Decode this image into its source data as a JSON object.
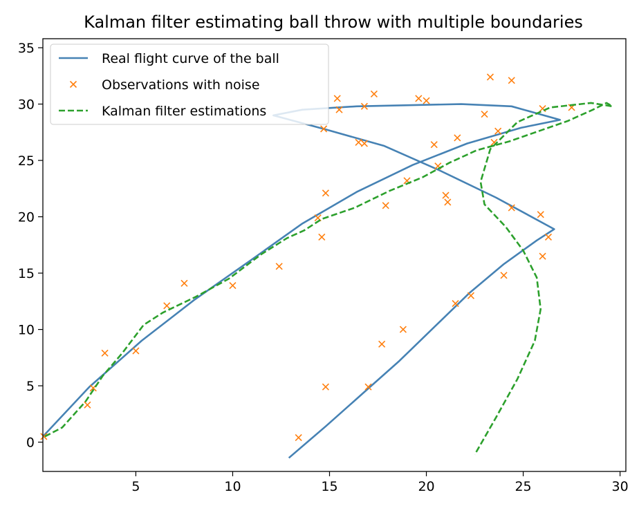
{
  "chart_data": {
    "type": "line",
    "title": "Kalman filter estimating ball throw with multiple boundaries",
    "xlabel": "",
    "ylabel": "",
    "xlim": [
      0.2,
      30.3
    ],
    "ylim": [
      -2.6,
      35.8
    ],
    "xticks": [
      5,
      10,
      15,
      20,
      25,
      30
    ],
    "yticks": [
      0,
      5,
      10,
      15,
      20,
      25,
      30,
      35
    ],
    "grid": false,
    "legend_position": "upper left",
    "series": [
      {
        "name": "Real flight curve of the ball",
        "style": "line",
        "color": "#4682b4",
        "x": [
          0.2,
          2.6,
          5.3,
          8.0,
          10.9,
          13.6,
          16.4,
          19.3,
          22.1,
          24.9,
          26.9,
          24.4,
          21.8,
          19.1,
          16.4,
          13.6,
          12.1,
          14.9,
          17.8,
          20.7,
          23.6,
          26.6,
          25.7,
          24.0,
          22.2,
          20.4,
          18.6,
          16.7,
          14.8,
          12.9
        ],
        "y": [
          0.5,
          4.9,
          9.0,
          12.6,
          16.1,
          19.4,
          22.2,
          24.6,
          26.5,
          27.9,
          28.6,
          29.8,
          30.0,
          29.9,
          29.8,
          29.5,
          29.0,
          27.7,
          26.3,
          24.1,
          21.7,
          18.9,
          17.9,
          15.8,
          13.2,
          10.2,
          7.2,
          4.3,
          1.4,
          -1.4
        ]
      },
      {
        "name": "Observations with noise",
        "style": "marker",
        "color": "#ff7f0e",
        "x": [
          0.25,
          2.5,
          2.8,
          3.4,
          5.0,
          6.6,
          7.5,
          10.0,
          12.4,
          14.4,
          14.6,
          14.7,
          14.8,
          15.4,
          15.5,
          16.5,
          16.8,
          16.8,
          17.3,
          17.9,
          19.0,
          19.6,
          20.0,
          20.4,
          20.6,
          21.0,
          21.1,
          21.6,
          23.0,
          23.3,
          23.5,
          23.7,
          24.4,
          24.4,
          25.9,
          26.0,
          26.3,
          27.5,
          24.0,
          22.3,
          21.5,
          18.8,
          17.7,
          17.0,
          14.8,
          13.4,
          26.0
        ],
        "y": [
          0.5,
          3.3,
          4.8,
          7.9,
          8.1,
          12.1,
          14.1,
          13.9,
          15.6,
          19.9,
          18.2,
          27.8,
          22.1,
          30.5,
          29.5,
          26.6,
          29.8,
          26.5,
          30.9,
          21.0,
          23.2,
          30.5,
          30.3,
          26.4,
          24.5,
          21.9,
          21.3,
          27.0,
          29.1,
          32.4,
          26.6,
          27.6,
          32.1,
          20.8,
          20.2,
          29.6,
          18.2,
          29.7,
          14.8,
          13.0,
          12.3,
          10.0,
          8.7,
          4.9,
          4.9,
          0.4,
          16.5
        ]
      },
      {
        "name": "Kalman filter estimations",
        "style": "dashed",
        "color": "#2ca02c",
        "x": [
          0.3,
          1.2,
          2.4,
          3.3,
          4.3,
          5.4,
          6.4,
          8.1,
          9.8,
          11.5,
          12.8,
          13.7,
          14.6,
          16.3,
          18.1,
          19.8,
          21.2,
          22.6,
          24.3,
          25.8,
          27.3,
          28.6,
          29.3,
          29.6,
          28.5,
          26.4,
          24.7,
          23.3,
          22.8,
          23.0,
          24.1,
          25.0,
          25.7,
          25.9,
          25.6,
          24.7,
          23.6,
          22.5
        ],
        "y": [
          0.5,
          1.3,
          3.6,
          5.9,
          7.9,
          10.4,
          11.5,
          12.9,
          14.5,
          16.7,
          18.1,
          18.8,
          19.8,
          20.8,
          22.3,
          23.5,
          24.8,
          25.9,
          26.7,
          27.6,
          28.5,
          29.5,
          30.1,
          29.8,
          30.1,
          29.7,
          28.4,
          26.0,
          23.1,
          21.1,
          19.1,
          17.0,
          14.6,
          11.8,
          9.0,
          5.6,
          2.2,
          -1.1
        ]
      }
    ]
  }
}
